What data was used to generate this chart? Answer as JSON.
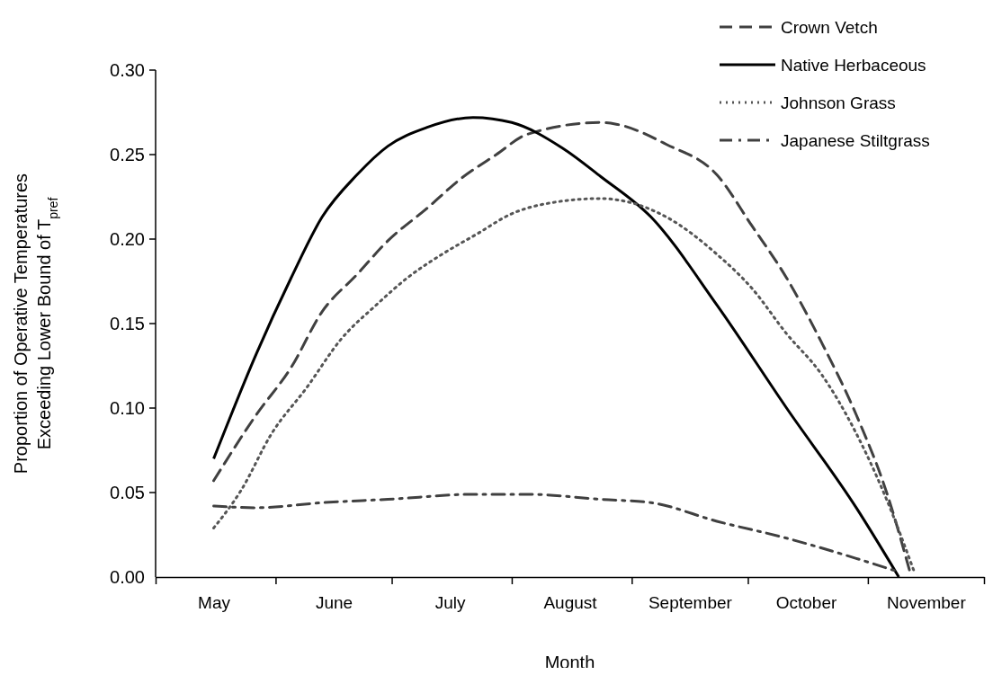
{
  "chart_data": {
    "type": "line",
    "xlabel": "Month",
    "ylabel": "Proportion of Operative Temperatures\nExceeding Lower Bound of T$_{pref}$",
    "xlim": [
      "--05-01",
      "--12-01"
    ],
    "xticks": [
      {
        "value": "--05-01",
        "label": null
      },
      {
        "value": "--05-16",
        "label": "May"
      },
      {
        "value": "--06-01",
        "label": null
      },
      {
        "value": "--06-16",
        "label": "June"
      },
      {
        "value": "--07-01",
        "label": null
      },
      {
        "value": "--07-16",
        "label": "July"
      },
      {
        "value": "--08-01",
        "label": null
      },
      {
        "value": "--08-16",
        "label": "August"
      },
      {
        "value": "--09-01",
        "label": null
      },
      {
        "value": "--09-16",
        "label": "September"
      },
      {
        "value": "--10-01",
        "label": null
      },
      {
        "value": "--10-16",
        "label": "October"
      },
      {
        "value": "--11-01",
        "label": null
      },
      {
        "value": "--11-16",
        "label": "November"
      },
      {
        "value": "--12-01",
        "label": null
      }
    ],
    "ylim": [
      0,
      0.3
    ],
    "yticks": [
      {
        "value": 0,
        "label": "0.00"
      },
      {
        "value": 0.05,
        "label": "0.05"
      },
      {
        "value": 0.1,
        "label": "0.10"
      },
      {
        "value": 0.15,
        "label": "0.15"
      },
      {
        "value": 0.2,
        "label": "0.20"
      },
      {
        "value": 0.25,
        "label": "0.25"
      },
      {
        "value": 0.3,
        "label": "0.30"
      }
    ],
    "grid": false,
    "legend": "top right",
    "marker": "none",
    "series": [
      {
        "name": "Crown Vetch",
        "color": "#404040",
        "line_style": "dashed",
        "x": [
          "--05-16",
          "--05-27",
          "--06-05",
          "--06-13",
          "--06-22",
          "--06-30",
          "--07-10",
          "--07-19",
          "--07-28",
          "--08-05",
          "--08-24",
          "--08-28",
          "--09-10",
          "--09-23",
          "--10-02",
          "--10-11",
          "--10-20",
          "--10-29",
          "--11-06",
          "--11-12"
        ],
        "values": [
          0.057,
          0.096,
          0.124,
          0.157,
          0.179,
          0.199,
          0.218,
          0.236,
          0.25,
          0.262,
          0.269,
          0.268,
          0.256,
          0.238,
          0.208,
          0.177,
          0.139,
          0.096,
          0.049,
          0.002
        ]
      },
      {
        "name": "Native Herbaceous",
        "color": "#000000",
        "line_style": "solid",
        "x": [
          "--05-16",
          "--05-27",
          "--06-05",
          "--06-13",
          "--06-22",
          "--06-30",
          "--07-10",
          "--07-22",
          "--08-01",
          "--08-14",
          "--08-24",
          "--09-06",
          "--09-23",
          "--10-11",
          "--10-29",
          "--11-09"
        ],
        "values": [
          0.07,
          0.132,
          0.177,
          0.213,
          0.238,
          0.255,
          0.266,
          0.272,
          0.269,
          0.254,
          0.237,
          0.213,
          0.161,
          0.1,
          0.041,
          0.0
        ]
      },
      {
        "name": "Johnson Grass",
        "color": "#555555",
        "line_style": "dotted",
        "x": [
          "--05-16",
          "--05-23",
          "--05-31",
          "--06-09",
          "--06-18",
          "--06-27",
          "--07-05",
          "--07-14",
          "--07-23",
          "--08-01",
          "--08-10",
          "--08-24",
          "--08-31",
          "--09-10",
          "--09-23",
          "--10-02",
          "--10-11",
          "--10-20",
          "--10-29",
          "--11-06",
          "--11-13"
        ],
        "values": [
          0.029,
          0.051,
          0.085,
          0.112,
          0.141,
          0.161,
          0.177,
          0.191,
          0.203,
          0.215,
          0.221,
          0.224,
          0.222,
          0.213,
          0.191,
          0.171,
          0.144,
          0.12,
          0.085,
          0.045,
          0.003
        ]
      },
      {
        "name": "Japanese Stiltgrass",
        "color": "#404040",
        "line_style": "dashdot",
        "x": [
          "--05-16",
          "--05-27",
          "--06-13",
          "--06-30",
          "--07-23",
          "--08-05",
          "--08-24",
          "--09-06",
          "--09-23",
          "--10-11",
          "--10-29",
          "--11-09"
        ],
        "values": [
          0.042,
          0.041,
          0.044,
          0.046,
          0.049,
          0.049,
          0.046,
          0.044,
          0.033,
          0.023,
          0.011,
          0.003
        ]
      }
    ]
  }
}
